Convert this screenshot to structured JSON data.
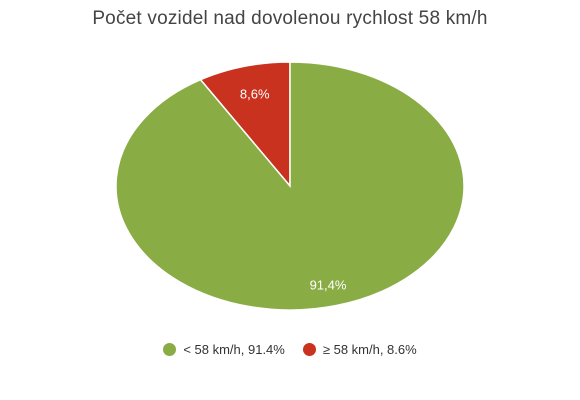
{
  "chart_data": {
    "type": "pie",
    "title": "Počet vozidel nad dovolenou rychlost 58 km/h",
    "slices": [
      {
        "label": "8,6%",
        "legend": "≥ 58 km/h, 8.6%",
        "value": 8.6,
        "color": "#c8321e"
      },
      {
        "label": "91,4%",
        "legend": "< 58 km/h, 91.4%",
        "value": 91.4,
        "color": "#8aac44"
      }
    ],
    "legend_order": [
      1,
      0
    ],
    "legend_position": "bottom"
  }
}
